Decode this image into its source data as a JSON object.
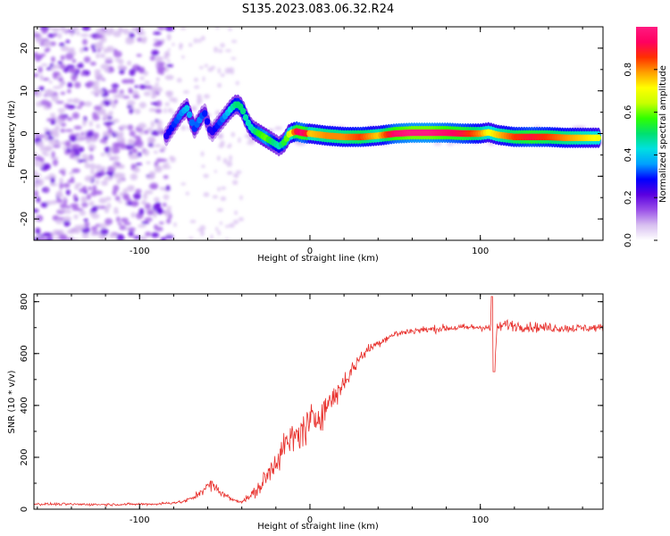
{
  "title": "S135.2023.083.06.32.R24",
  "colors": {
    "axis": "#000000",
    "snr_line": "#e8302c",
    "scatter_light": "#d8bff0",
    "scatter_mid": "#a86ae8",
    "scatter_dark": "#6a10e0"
  },
  "chart_data": [
    {
      "type": "heatmap",
      "title": "S135.2023.083.06.32.R24",
      "xlabel": "Height of straight line (km)",
      "ylabel": "Frequency (Hz)",
      "xlim": [
        -162,
        172
      ],
      "ylim": [
        -25,
        25
      ],
      "x_ticks": [
        -100,
        0,
        100
      ],
      "y_ticks": [
        -20,
        -10,
        0,
        10,
        20
      ],
      "colorbar": {
        "label": "Normalized spectral amplitude",
        "range": [
          0,
          1
        ],
        "ticks": [
          0.0,
          0.2,
          0.4,
          0.6,
          0.8
        ],
        "colormap": [
          "#ffffff",
          "#d8bff0",
          "#9a50e8",
          "#5a00e0",
          "#0000ff",
          "#00a0ff",
          "#00e0e0",
          "#00e070",
          "#30ff00",
          "#c8ff00",
          "#ffff00",
          "#ffa000",
          "#ff3000",
          "#ff0060",
          "#ff1a80"
        ]
      },
      "ridge": {
        "x": [
          -85,
          -80,
          -75,
          -72,
          -68,
          -65,
          -62,
          -58,
          -54,
          -50,
          -46,
          -43,
          -40,
          -37,
          -34,
          -30,
          -26,
          -22,
          -18,
          -15,
          -12,
          -8,
          -5,
          -2,
          0,
          10,
          20,
          30,
          40,
          50,
          60,
          70,
          80,
          90,
          100,
          105,
          110,
          120,
          130,
          140,
          150,
          160,
          170
        ],
        "y": [
          -1,
          2,
          5,
          6,
          1,
          3,
          5,
          0,
          2,
          4,
          6,
          7,
          6,
          3,
          1,
          0,
          -1,
          -2,
          -3,
          -2,
          0,
          0.5,
          0.2,
          0,
          0,
          -0.5,
          -0.8,
          -0.8,
          -0.5,
          0,
          0.2,
          0.2,
          0.2,
          0,
          0,
          0.3,
          -0.3,
          -0.8,
          -0.8,
          -0.8,
          -1,
          -1,
          -1
        ],
        "amplitude": [
          0.25,
          0.3,
          0.35,
          0.4,
          0.3,
          0.35,
          0.3,
          0.25,
          0.3,
          0.35,
          0.45,
          0.5,
          0.5,
          0.45,
          0.45,
          0.55,
          0.6,
          0.5,
          0.45,
          0.55,
          0.65,
          0.9,
          0.95,
          0.9,
          0.75,
          0.8,
          0.8,
          0.85,
          0.75,
          0.95,
          1.0,
          1.0,
          0.95,
          0.9,
          0.8,
          0.7,
          0.75,
          0.85,
          0.9,
          0.85,
          0.8,
          0.75,
          0.7
        ]
      }
    },
    {
      "type": "line",
      "xlabel": "Height of straight line (km)",
      "ylabel": "SNR (10 * v/v)",
      "xlim": [
        -162,
        172
      ],
      "ylim": [
        0,
        830
      ],
      "x_ticks": [
        -100,
        0,
        100
      ],
      "y_ticks": [
        0,
        200,
        400,
        600,
        800
      ],
      "series": [
        {
          "x": [
            -162,
            -120,
            -90,
            -75,
            -68,
            -63,
            -58,
            -55,
            -50,
            -45,
            -40,
            -35,
            -30,
            -25,
            -20,
            -15,
            -10,
            -5,
            0,
            5,
            10,
            15,
            20,
            25,
            30,
            35,
            40,
            45,
            50,
            60,
            70,
            80,
            90,
            100,
            104,
            106,
            107,
            108,
            110,
            115,
            120,
            130,
            140,
            150,
            160,
            172
          ],
          "values": [
            20,
            18,
            20,
            28,
            45,
            75,
            95,
            80,
            55,
            35,
            30,
            50,
            80,
            130,
            190,
            240,
            270,
            300,
            330,
            360,
            400,
            440,
            490,
            540,
            590,
            620,
            640,
            660,
            675,
            688,
            693,
            698,
            700,
            702,
            702,
            690,
            820,
            540,
            700,
            712,
            708,
            702,
            700,
            698,
            698,
            700
          ],
          "noise": [
            4,
            4,
            4,
            5,
            8,
            16,
            20,
            16,
            10,
            6,
            6,
            12,
            24,
            36,
            46,
            52,
            56,
            58,
            58,
            54,
            48,
            42,
            34,
            26,
            20,
            16,
            14,
            12,
            12,
            12,
            12,
            12,
            12,
            12,
            12,
            12,
            12,
            12,
            16,
            18,
            18,
            16,
            16,
            14,
            14,
            12
          ]
        }
      ]
    }
  ]
}
